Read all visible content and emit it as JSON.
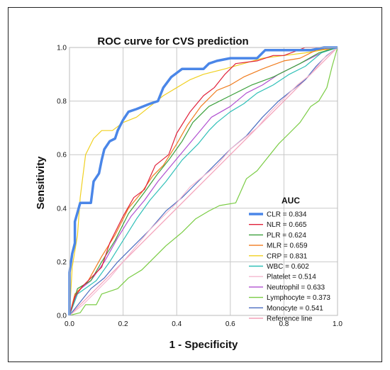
{
  "chart_data": {
    "type": "line",
    "title": "ROC curve for CVS prediction",
    "xlabel": "1 - Specificity",
    "ylabel": "Sensitivity",
    "xlim": [
      0.0,
      1.0
    ],
    "ylim": [
      0.0,
      1.0
    ],
    "x_ticks": [
      "0.0",
      "0.2",
      "0.4",
      "0.6",
      "0.8",
      "1.0"
    ],
    "y_ticks": [
      "0.0",
      "0.2",
      "0.4",
      "0.6",
      "0.8",
      "1.0"
    ],
    "grid": true,
    "legend_title": "AUC",
    "legend_position": "bottom-right",
    "series": [
      {
        "name": "CLR = 0.834",
        "color": "#4A86E8",
        "points": [
          [
            0,
            0
          ],
          [
            0,
            0.16
          ],
          [
            0.01,
            0.23
          ],
          [
            0.02,
            0.27
          ],
          [
            0.02,
            0.35
          ],
          [
            0.04,
            0.42
          ],
          [
            0.08,
            0.42
          ],
          [
            0.09,
            0.5
          ],
          [
            0.11,
            0.53
          ],
          [
            0.12,
            0.58
          ],
          [
            0.13,
            0.62
          ],
          [
            0.15,
            0.65
          ],
          [
            0.17,
            0.66
          ],
          [
            0.18,
            0.69
          ],
          [
            0.2,
            0.73
          ],
          [
            0.22,
            0.76
          ],
          [
            0.25,
            0.77
          ],
          [
            0.3,
            0.79
          ],
          [
            0.33,
            0.8
          ],
          [
            0.35,
            0.85
          ],
          [
            0.38,
            0.89
          ],
          [
            0.42,
            0.92
          ],
          [
            0.5,
            0.92
          ],
          [
            0.52,
            0.94
          ],
          [
            0.55,
            0.95
          ],
          [
            0.6,
            0.96
          ],
          [
            0.7,
            0.96
          ],
          [
            0.73,
            0.99
          ],
          [
            0.9,
            0.99
          ],
          [
            0.95,
            1.0
          ],
          [
            1,
            1
          ]
        ]
      },
      {
        "name": "NLR = 0.665",
        "color": "#E0203A",
        "points": [
          [
            0,
            0
          ],
          [
            0.02,
            0.07
          ],
          [
            0.05,
            0.11
          ],
          [
            0.12,
            0.18
          ],
          [
            0.15,
            0.27
          ],
          [
            0.2,
            0.37
          ],
          [
            0.24,
            0.44
          ],
          [
            0.28,
            0.47
          ],
          [
            0.32,
            0.56
          ],
          [
            0.37,
            0.6
          ],
          [
            0.4,
            0.68
          ],
          [
            0.45,
            0.76
          ],
          [
            0.5,
            0.82
          ],
          [
            0.54,
            0.85
          ],
          [
            0.58,
            0.9
          ],
          [
            0.62,
            0.94
          ],
          [
            0.7,
            0.95
          ],
          [
            0.76,
            0.97
          ],
          [
            0.8,
            0.97
          ],
          [
            0.88,
            1.0
          ],
          [
            1,
            1
          ]
        ]
      },
      {
        "name": "PLR = 0.624",
        "color": "#3CA03C",
        "points": [
          [
            0,
            0
          ],
          [
            0.03,
            0.1
          ],
          [
            0.08,
            0.13
          ],
          [
            0.12,
            0.2
          ],
          [
            0.17,
            0.28
          ],
          [
            0.22,
            0.38
          ],
          [
            0.28,
            0.46
          ],
          [
            0.33,
            0.53
          ],
          [
            0.37,
            0.58
          ],
          [
            0.42,
            0.65
          ],
          [
            0.46,
            0.72
          ],
          [
            0.52,
            0.78
          ],
          [
            0.6,
            0.82
          ],
          [
            0.68,
            0.86
          ],
          [
            0.76,
            0.89
          ],
          [
            0.86,
            0.94
          ],
          [
            0.93,
            0.98
          ],
          [
            1,
            1
          ]
        ]
      },
      {
        "name": "MLR = 0.659",
        "color": "#F07C1E",
        "points": [
          [
            0,
            0
          ],
          [
            0.02,
            0.08
          ],
          [
            0.07,
            0.13
          ],
          [
            0.12,
            0.22
          ],
          [
            0.17,
            0.3
          ],
          [
            0.22,
            0.4
          ],
          [
            0.27,
            0.46
          ],
          [
            0.31,
            0.52
          ],
          [
            0.35,
            0.56
          ],
          [
            0.4,
            0.64
          ],
          [
            0.44,
            0.71
          ],
          [
            0.49,
            0.78
          ],
          [
            0.55,
            0.84
          ],
          [
            0.6,
            0.86
          ],
          [
            0.65,
            0.89
          ],
          [
            0.72,
            0.92
          ],
          [
            0.8,
            0.95
          ],
          [
            0.86,
            0.96
          ],
          [
            0.92,
            0.99
          ],
          [
            1,
            1
          ]
        ]
      },
      {
        "name": "CRP = 0.831",
        "color": "#F0D020",
        "points": [
          [
            0,
            0
          ],
          [
            0.01,
            0.18
          ],
          [
            0.03,
            0.3
          ],
          [
            0.04,
            0.44
          ],
          [
            0.05,
            0.52
          ],
          [
            0.06,
            0.6
          ],
          [
            0.09,
            0.66
          ],
          [
            0.12,
            0.69
          ],
          [
            0.16,
            0.69
          ],
          [
            0.2,
            0.72
          ],
          [
            0.25,
            0.74
          ],
          [
            0.3,
            0.78
          ],
          [
            0.35,
            0.82
          ],
          [
            0.4,
            0.85
          ],
          [
            0.45,
            0.88
          ],
          [
            0.5,
            0.9
          ],
          [
            0.58,
            0.92
          ],
          [
            0.65,
            0.94
          ],
          [
            0.72,
            0.96
          ],
          [
            0.8,
            0.97
          ],
          [
            0.88,
            0.98
          ],
          [
            1,
            1
          ]
        ]
      },
      {
        "name": "WBC = 0.602",
        "color": "#30C0B8",
        "points": [
          [
            0,
            0
          ],
          [
            0.03,
            0.08
          ],
          [
            0.1,
            0.13
          ],
          [
            0.15,
            0.2
          ],
          [
            0.2,
            0.28
          ],
          [
            0.25,
            0.36
          ],
          [
            0.3,
            0.43
          ],
          [
            0.36,
            0.5
          ],
          [
            0.42,
            0.58
          ],
          [
            0.48,
            0.64
          ],
          [
            0.52,
            0.69
          ],
          [
            0.55,
            0.72
          ],
          [
            0.6,
            0.76
          ],
          [
            0.65,
            0.79
          ],
          [
            0.7,
            0.83
          ],
          [
            0.76,
            0.86
          ],
          [
            0.82,
            0.9
          ],
          [
            0.88,
            0.93
          ],
          [
            0.94,
            0.98
          ],
          [
            1,
            1
          ]
        ]
      },
      {
        "name": "Platelet = 0.514",
        "color": "#F5B8CF",
        "points": [
          [
            0,
            0
          ],
          [
            0.05,
            0.04
          ],
          [
            0.1,
            0.09
          ],
          [
            0.15,
            0.14
          ],
          [
            0.2,
            0.2
          ],
          [
            0.25,
            0.26
          ],
          [
            0.3,
            0.32
          ],
          [
            0.35,
            0.37
          ],
          [
            0.4,
            0.42
          ],
          [
            0.45,
            0.48
          ],
          [
            0.5,
            0.52
          ],
          [
            0.55,
            0.56
          ],
          [
            0.6,
            0.62
          ],
          [
            0.65,
            0.66
          ],
          [
            0.7,
            0.7
          ],
          [
            0.75,
            0.76
          ],
          [
            0.8,
            0.81
          ],
          [
            0.85,
            0.86
          ],
          [
            0.9,
            0.9
          ],
          [
            0.95,
            0.96
          ],
          [
            1,
            1
          ]
        ]
      },
      {
        "name": "Neutrophil = 0.633",
        "color": "#B050D0",
        "points": [
          [
            0,
            0
          ],
          [
            0.03,
            0.09
          ],
          [
            0.08,
            0.13
          ],
          [
            0.13,
            0.2
          ],
          [
            0.18,
            0.29
          ],
          [
            0.23,
            0.37
          ],
          [
            0.28,
            0.43
          ],
          [
            0.33,
            0.5
          ],
          [
            0.38,
            0.56
          ],
          [
            0.43,
            0.62
          ],
          [
            0.48,
            0.68
          ],
          [
            0.53,
            0.74
          ],
          [
            0.6,
            0.78
          ],
          [
            0.66,
            0.83
          ],
          [
            0.72,
            0.86
          ],
          [
            0.78,
            0.9
          ],
          [
            0.84,
            0.93
          ],
          [
            0.9,
            0.96
          ],
          [
            0.96,
            0.99
          ],
          [
            1,
            1
          ]
        ]
      },
      {
        "name": "Lymphocyte = 0.373",
        "color": "#7ACC44",
        "points": [
          [
            0,
            0
          ],
          [
            0.04,
            0.01
          ],
          [
            0.06,
            0.04
          ],
          [
            0.1,
            0.04
          ],
          [
            0.12,
            0.08
          ],
          [
            0.18,
            0.1
          ],
          [
            0.22,
            0.14
          ],
          [
            0.27,
            0.17
          ],
          [
            0.32,
            0.22
          ],
          [
            0.36,
            0.26
          ],
          [
            0.42,
            0.31
          ],
          [
            0.47,
            0.36
          ],
          [
            0.52,
            0.39
          ],
          [
            0.56,
            0.41
          ],
          [
            0.62,
            0.42
          ],
          [
            0.66,
            0.51
          ],
          [
            0.7,
            0.54
          ],
          [
            0.74,
            0.59
          ],
          [
            0.78,
            0.64
          ],
          [
            0.82,
            0.68
          ],
          [
            0.86,
            0.72
          ],
          [
            0.9,
            0.78
          ],
          [
            0.93,
            0.8
          ],
          [
            0.96,
            0.85
          ],
          [
            0.98,
            0.93
          ],
          [
            1,
            1
          ]
        ]
      },
      {
        "name": "Monocyte = 0.541",
        "color": "#4A6CC0",
        "points": [
          [
            0,
            0
          ],
          [
            0.04,
            0.05
          ],
          [
            0.08,
            0.1
          ],
          [
            0.13,
            0.14
          ],
          [
            0.18,
            0.2
          ],
          [
            0.24,
            0.26
          ],
          [
            0.3,
            0.32
          ],
          [
            0.36,
            0.39
          ],
          [
            0.42,
            0.44
          ],
          [
            0.48,
            0.5
          ],
          [
            0.54,
            0.56
          ],
          [
            0.6,
            0.62
          ],
          [
            0.66,
            0.67
          ],
          [
            0.72,
            0.74
          ],
          [
            0.78,
            0.8
          ],
          [
            0.83,
            0.84
          ],
          [
            0.88,
            0.88
          ],
          [
            0.92,
            0.93
          ],
          [
            0.96,
            0.97
          ],
          [
            1,
            1
          ]
        ]
      },
      {
        "name": "Reference line",
        "color": "#F4A0B8",
        "points": [
          [
            0,
            0
          ],
          [
            1,
            1
          ]
        ]
      }
    ]
  }
}
